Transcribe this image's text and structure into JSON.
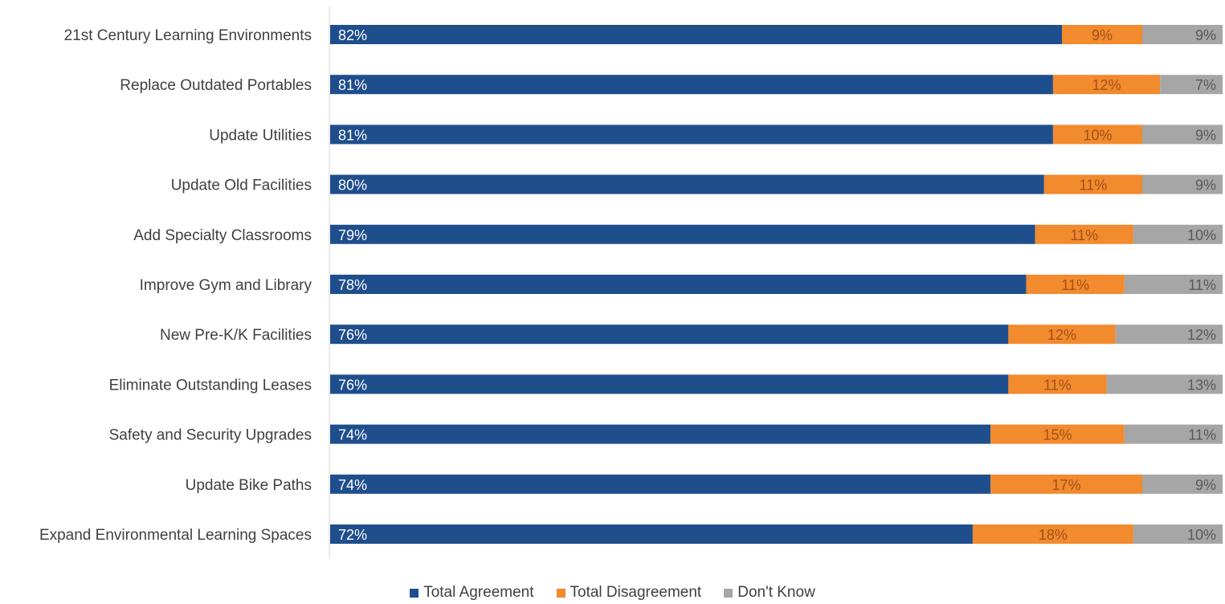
{
  "chart_data": {
    "type": "bar",
    "orientation": "horizontal",
    "stacked": true,
    "normalized": true,
    "categories": [
      "21st Century Learning Environments",
      "Replace Outdated Portables",
      "Update Utilities",
      "Update Old Facilities",
      "Add Specialty Classrooms",
      "Improve Gym and Library",
      "New Pre-K/K Facilities",
      "Eliminate Outstanding Leases",
      "Safety and Security Upgrades",
      "Update Bike Paths",
      "Expand Environmental Learning Spaces"
    ],
    "series": [
      {
        "name": "Total Agreement",
        "color": "#1f4e8c",
        "label_color": "#ffffff",
        "values": [
          82,
          81,
          81,
          80,
          79,
          78,
          76,
          76,
          74,
          74,
          72
        ]
      },
      {
        "name": "Total Disagreement",
        "color": "#f28a2e",
        "label_color": "#a0521a",
        "values": [
          9,
          12,
          10,
          11,
          11,
          11,
          12,
          11,
          15,
          17,
          18
        ]
      },
      {
        "name": "Don't Know",
        "color": "#a6a6a6",
        "label_color": "#595959",
        "values": [
          9,
          7,
          9,
          9,
          10,
          11,
          12,
          13,
          11,
          9,
          10
        ]
      }
    ],
    "value_suffix": "%",
    "title": "",
    "xlabel": "",
    "ylabel": "",
    "grid": false,
    "legend_position": "bottom"
  }
}
